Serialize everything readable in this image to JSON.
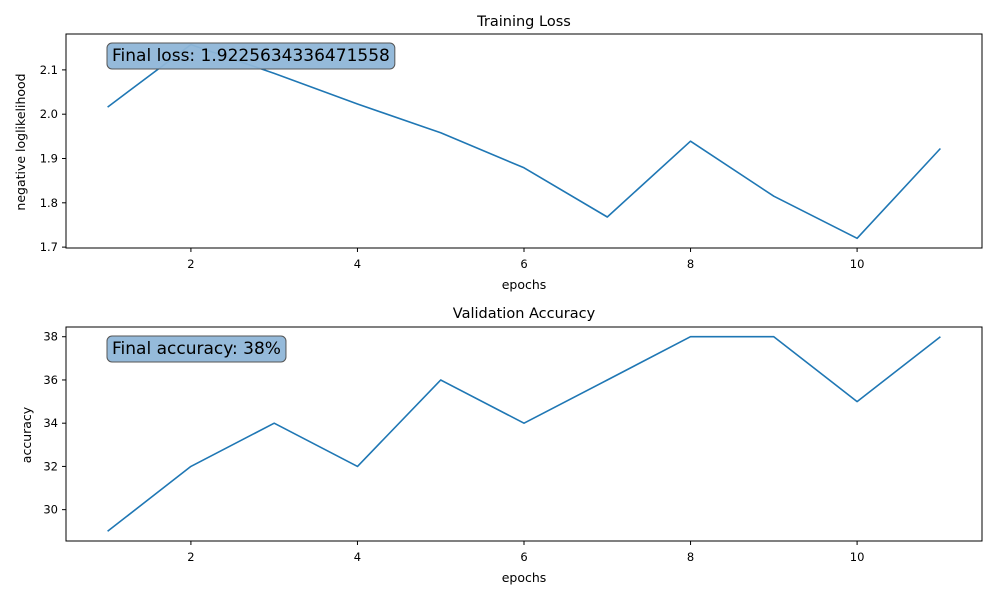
{
  "chart_data": [
    {
      "type": "line",
      "title": "Training Loss",
      "xlabel": "epochs",
      "ylabel": "negative loglikelihood",
      "xlim": [
        0.5,
        11.5
      ],
      "ylim": [
        1.698,
        2.181
      ],
      "xticks": [
        2,
        4,
        6,
        8,
        10
      ],
      "xtick_labels": [
        "2",
        "4",
        "6",
        "8",
        "10"
      ],
      "yticks": [
        1.7,
        1.8,
        1.9,
        2.0,
        2.1
      ],
      "ytick_labels": [
        "1.7",
        "1.8",
        "1.9",
        "2.0",
        "2.1"
      ],
      "grid": false,
      "series": [
        {
          "color": "#1f77b4",
          "x": [
            1,
            2,
            3,
            4,
            5,
            6,
            7,
            8,
            9,
            10,
            11
          ],
          "y": [
            2.016,
            2.157,
            2.092,
            2.023,
            1.958,
            1.879,
            1.768,
            1.939,
            1.815,
            1.72,
            1.9226
          ]
        }
      ],
      "annotation": {
        "text": "Final loss: 1.9225634336471558",
        "box_color": "#8fb6d8"
      }
    },
    {
      "type": "line",
      "title": "Validation Accuracy",
      "xlabel": "epochs",
      "ylabel": "accuracy",
      "xlim": [
        0.5,
        11.5
      ],
      "ylim": [
        28.55,
        38.45
      ],
      "xticks": [
        2,
        4,
        6,
        8,
        10
      ],
      "xtick_labels": [
        "2",
        "4",
        "6",
        "8",
        "10"
      ],
      "yticks": [
        30,
        32,
        34,
        36,
        38
      ],
      "ytick_labels": [
        "30",
        "32",
        "34",
        "36",
        "38"
      ],
      "grid": false,
      "series": [
        {
          "color": "#1f77b4",
          "x": [
            1,
            2,
            3,
            4,
            5,
            6,
            7,
            8,
            9,
            10,
            11
          ],
          "y": [
            29,
            32,
            34,
            32,
            36,
            34,
            36,
            38,
            38,
            35,
            38
          ]
        }
      ],
      "annotation": {
        "text": "Final accuracy: 38%",
        "box_color": "#8fb6d8"
      }
    }
  ]
}
